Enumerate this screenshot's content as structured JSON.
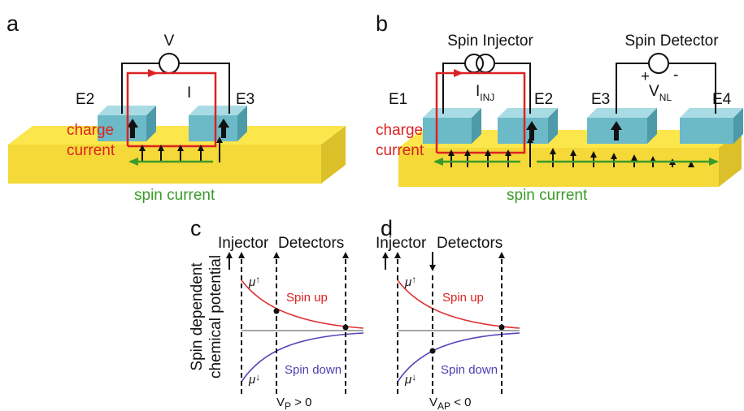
{
  "panels": {
    "a": {
      "label": "a",
      "voltage": "V",
      "current_symbol": "I",
      "electrodes": [
        "E2",
        "E3"
      ],
      "charge_current": [
        "charge",
        "current"
      ],
      "spin_current": "spin current"
    },
    "b": {
      "label": "b",
      "injector": "Spin Injector",
      "injection_current": {
        "symbol": "I",
        "subscript": "INJ"
      },
      "detector": "Spin Detector",
      "plus": "+",
      "minus": "-",
      "voltage": {
        "symbol": "V",
        "subscript": "NL"
      },
      "electrodes": [
        "E1",
        "E2",
        "E3",
        "E4"
      ],
      "charge_current": [
        "charge",
        "current"
      ],
      "spin_current": "spin current"
    },
    "c": {
      "label": "c",
      "injector": "Injector",
      "detectors": "Detectors",
      "y_label": [
        "Spin dependent",
        "chemical potential"
      ],
      "mu_up": {
        "symbol": "μ",
        "subscript": "↑"
      },
      "mu_down": {
        "symbol": "μ",
        "subscript": "↓"
      },
      "spin_up": "Spin up",
      "spin_down": "Spin down",
      "condition": {
        "symbol": "V",
        "subscript": "P",
        "relation": " > 0"
      }
    },
    "d": {
      "label": "d",
      "injector": "Injector",
      "detectors": "Detectors",
      "mu_up": {
        "symbol": "μ",
        "subscript": "↑"
      },
      "mu_down": {
        "symbol": "μ",
        "subscript": "↓"
      },
      "spin_up": "Spin up",
      "spin_down": "Spin down",
      "condition": {
        "symbol": "V",
        "subscript": "AP",
        "relation": " < 0"
      }
    }
  }
}
